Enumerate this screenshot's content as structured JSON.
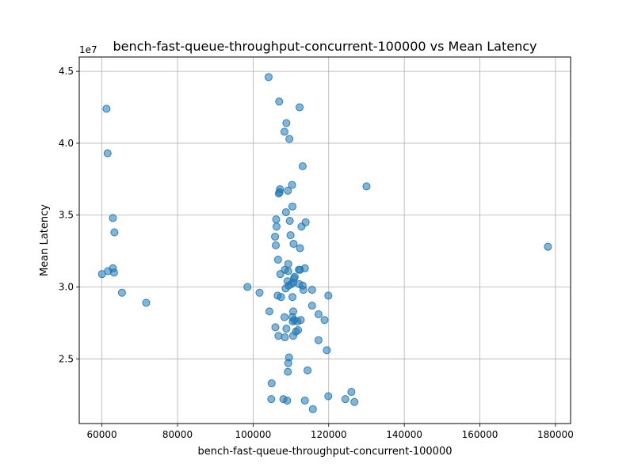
{
  "chart_data": {
    "type": "scatter",
    "title": "bench-fast-queue-throughput-concurrent-100000 vs Mean Latency",
    "xlabel": "bench-fast-queue-throughput-concurrent-100000",
    "ylabel": "Mean Latency",
    "y_offset_label": "1e7",
    "xlim": [
      54000,
      184000
    ],
    "ylim": [
      20500000,
      46000000
    ],
    "x_ticks": [
      60000,
      80000,
      100000,
      120000,
      140000,
      160000,
      180000
    ],
    "x_tick_labels": [
      "60000",
      "80000",
      "100000",
      "120000",
      "140000",
      "160000",
      "180000"
    ],
    "y_ticks": [
      25000000,
      30000000,
      35000000,
      40000000,
      45000000
    ],
    "y_tick_labels": [
      "2.5",
      "3.0",
      "3.5",
      "4.0",
      "4.5"
    ],
    "grid": true,
    "marker_color": "#1f77b4",
    "marker_alpha": 0.55,
    "points": [
      [
        104100,
        44600000
      ],
      [
        106900,
        42900000
      ],
      [
        112300,
        42500000
      ],
      [
        61200,
        42400000
      ],
      [
        108800,
        41400000
      ],
      [
        108300,
        40800000
      ],
      [
        109600,
        40300000
      ],
      [
        61500,
        39300000
      ],
      [
        113100,
        38400000
      ],
      [
        130000,
        37000000
      ],
      [
        110300,
        37100000
      ],
      [
        107100,
        36800000
      ],
      [
        106800,
        36500000
      ],
      [
        109200,
        36700000
      ],
      [
        107000,
        36600000
      ],
      [
        110400,
        35600000
      ],
      [
        108700,
        35200000
      ],
      [
        106100,
        34700000
      ],
      [
        109700,
        34600000
      ],
      [
        113900,
        34500000
      ],
      [
        62900,
        34800000
      ],
      [
        106200,
        34200000
      ],
      [
        112800,
        34200000
      ],
      [
        63300,
        33800000
      ],
      [
        109900,
        33600000
      ],
      [
        105800,
        33500000
      ],
      [
        110700,
        33000000
      ],
      [
        106000,
        32900000
      ],
      [
        112400,
        32700000
      ],
      [
        178000,
        32800000
      ],
      [
        106600,
        31900000
      ],
      [
        109300,
        31600000
      ],
      [
        62900,
        31300000
      ],
      [
        61600,
        31100000
      ],
      [
        108400,
        31200000
      ],
      [
        109300,
        31100000
      ],
      [
        112100,
        31200000
      ],
      [
        112400,
        31200000
      ],
      [
        113700,
        31300000
      ],
      [
        60000,
        30900000
      ],
      [
        63200,
        31000000
      ],
      [
        107200,
        30900000
      ],
      [
        110800,
        30600000
      ],
      [
        111000,
        30700000
      ],
      [
        109100,
        30400000
      ],
      [
        110100,
        30200000
      ],
      [
        109400,
        30100000
      ],
      [
        110600,
        30300000
      ],
      [
        112200,
        30200000
      ],
      [
        113100,
        30100000
      ],
      [
        98500,
        30000000
      ],
      [
        108600,
        29900000
      ],
      [
        113300,
        29800000
      ],
      [
        115600,
        29800000
      ],
      [
        101700,
        29600000
      ],
      [
        65300,
        29600000
      ],
      [
        106500,
        29400000
      ],
      [
        107400,
        29300000
      ],
      [
        110400,
        29300000
      ],
      [
        119900,
        29400000
      ],
      [
        71700,
        28900000
      ],
      [
        115600,
        28700000
      ],
      [
        104300,
        28300000
      ],
      [
        110600,
        28300000
      ],
      [
        117300,
        28100000
      ],
      [
        108300,
        27900000
      ],
      [
        110400,
        27900000
      ],
      [
        110900,
        27700000
      ],
      [
        110500,
        27600000
      ],
      [
        111700,
        27600000
      ],
      [
        112600,
        27700000
      ],
      [
        118900,
        27700000
      ],
      [
        105900,
        27200000
      ],
      [
        108800,
        27100000
      ],
      [
        111300,
        26900000
      ],
      [
        111900,
        27000000
      ],
      [
        106700,
        26600000
      ],
      [
        108400,
        26500000
      ],
      [
        110600,
        26600000
      ],
      [
        117300,
        26300000
      ],
      [
        119500,
        25600000
      ],
      [
        109500,
        25100000
      ],
      [
        109300,
        24700000
      ],
      [
        114400,
        24200000
      ],
      [
        109200,
        24100000
      ],
      [
        104900,
        23300000
      ],
      [
        126000,
        22700000
      ],
      [
        104800,
        22200000
      ],
      [
        108000,
        22200000
      ],
      [
        109000,
        22100000
      ],
      [
        113700,
        22100000
      ],
      [
        119900,
        22400000
      ],
      [
        124400,
        22200000
      ],
      [
        126800,
        22000000
      ],
      [
        115800,
        21500000
      ]
    ]
  }
}
